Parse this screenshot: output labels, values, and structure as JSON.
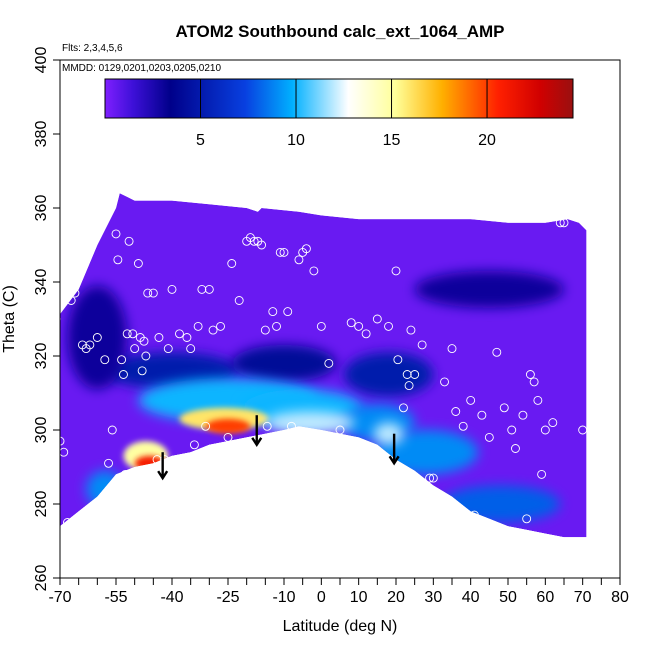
{
  "chart_data": {
    "type": "heatmap",
    "title": "ATOM2 Southbound calc_ext_1064_AMP",
    "annotations": [
      "Flts: 2,3,4,5,6",
      "MMDD: 0129,0201,0203,0205,0210"
    ],
    "xlabel": "Latitude (deg N)",
    "ylabel": "Theta (C)",
    "xlim": [
      -70,
      80
    ],
    "ylim": [
      260,
      400
    ],
    "x_tick_labels": [
      "-70",
      "-55",
      "-40",
      "-25",
      "-10",
      "0",
      "10",
      "20",
      "30",
      "40",
      "50",
      "60",
      "70",
      "80"
    ],
    "x_tick_values": [
      -70,
      -55,
      -40,
      -25,
      -10,
      0,
      10,
      20,
      30,
      40,
      50,
      60,
      70,
      80
    ],
    "x_minor_ticks": [
      -65,
      -60,
      -50,
      -45,
      -35,
      -30,
      -20,
      -15,
      -5,
      5,
      15,
      25,
      35,
      45,
      55,
      65,
      75
    ],
    "y_tick_labels": [
      "260",
      "280",
      "300",
      "320",
      "340",
      "360",
      "380",
      "400"
    ],
    "y_tick_values": [
      260,
      280,
      300,
      320,
      340,
      360,
      380,
      400
    ],
    "colorbar": {
      "range": [
        0,
        24.5
      ],
      "tick_values": [
        5,
        10,
        15,
        20
      ],
      "tick_labels": [
        "5",
        "10",
        "15",
        "20"
      ],
      "colors": [
        "#7f1fff",
        "#3d10d8",
        "#00008a",
        "#0840e0",
        "#00b0ff",
        "#ffffff",
        "#ffff9a",
        "#ffb000",
        "#ff2000",
        "#d00000",
        "#9a1010"
      ],
      "color_positions": [
        0,
        0.06,
        0.14,
        0.3,
        0.4,
        0.52,
        0.62,
        0.72,
        0.84,
        0.93,
        1
      ]
    },
    "domain_top": [
      [
        -71,
        330
      ],
      [
        -65,
        338
      ],
      [
        -60,
        350
      ],
      [
        -55,
        360
      ],
      [
        -54,
        364
      ],
      [
        -50,
        362
      ],
      [
        -40,
        362
      ],
      [
        -30,
        361
      ],
      [
        -20,
        360
      ],
      [
        -17,
        359
      ],
      [
        -16,
        360
      ],
      [
        -6,
        359
      ],
      [
        0,
        358
      ],
      [
        10,
        357
      ],
      [
        20,
        357
      ],
      [
        30,
        357
      ],
      [
        40,
        357
      ],
      [
        50,
        356
      ],
      [
        60,
        356
      ],
      [
        66,
        357
      ],
      [
        69,
        356
      ],
      [
        71,
        354
      ]
    ],
    "ground_profile": [
      [
        -70,
        274
      ],
      [
        -65,
        278
      ],
      [
        -60,
        282
      ],
      [
        -55,
        288
      ],
      [
        -50,
        290
      ],
      [
        -45,
        291
      ],
      [
        -40,
        293
      ],
      [
        -35,
        294
      ],
      [
        -30,
        296
      ],
      [
        -25,
        297
      ],
      [
        -20,
        298
      ],
      [
        -15,
        299
      ],
      [
        -10,
        300
      ],
      [
        -6,
        301
      ],
      [
        0,
        300
      ],
      [
        5,
        299
      ],
      [
        10,
        298
      ],
      [
        15,
        296
      ],
      [
        20,
        292
      ],
      [
        25,
        289
      ],
      [
        30,
        285
      ],
      [
        35,
        282
      ],
      [
        40,
        278
      ],
      [
        45,
        276
      ],
      [
        50,
        274
      ],
      [
        55,
        273
      ],
      [
        60,
        272
      ],
      [
        65,
        271
      ],
      [
        71,
        271
      ]
    ],
    "blobs": [
      {
        "lat": -40,
        "theta": 316,
        "rx": 18,
        "ry": 5,
        "value": 5
      },
      {
        "lat": -10,
        "theta": 318,
        "rx": 14,
        "ry": 5,
        "value": 4
      },
      {
        "lat": 18,
        "theta": 315,
        "rx": 12,
        "ry": 6,
        "value": 5
      },
      {
        "lat": -25,
        "theta": 308,
        "rx": 24,
        "ry": 6,
        "value": 10
      },
      {
        "lat": -5,
        "theta": 306,
        "rx": 16,
        "ry": 5,
        "value": 10
      },
      {
        "lat": 15,
        "theta": 302,
        "rx": 10,
        "ry": 5,
        "value": 9
      },
      {
        "lat": 28,
        "theta": 294,
        "rx": 14,
        "ry": 6,
        "value": 9
      },
      {
        "lat": 48,
        "theta": 280,
        "rx": 16,
        "ry": 5,
        "value": 8
      },
      {
        "lat": -26,
        "theta": 303,
        "rx": 12,
        "ry": 3,
        "value": 16
      },
      {
        "lat": -25,
        "theta": 301,
        "rx": 6,
        "ry": 2,
        "value": 20
      },
      {
        "lat": -3,
        "theta": 302,
        "rx": 12,
        "ry": 3,
        "value": 12
      },
      {
        "lat": 18,
        "theta": 299,
        "rx": 4,
        "ry": 3,
        "value": 12
      },
      {
        "lat": -47,
        "theta": 293,
        "rx": 6,
        "ry": 4,
        "value": 15
      },
      {
        "lat": -46,
        "theta": 291,
        "rx": 4,
        "ry": 2,
        "value": 21
      },
      {
        "lat": -58,
        "theta": 284,
        "rx": 5,
        "ry": 5,
        "value": 9
      },
      {
        "lat": 45,
        "theta": 338,
        "rx": 20,
        "ry": 5,
        "value": 3
      },
      {
        "lat": -60,
        "theta": 325,
        "rx": 8,
        "ry": 14,
        "value": 3
      }
    ],
    "arrows": [
      {
        "lat": -42.5,
        "theta_top": 294,
        "theta_bottom": 287
      },
      {
        "lat": -17.3,
        "theta_top": 304,
        "theta_bottom": 296
      },
      {
        "lat": 19.5,
        "theta_top": 299,
        "theta_bottom": 291
      }
    ],
    "sample_points": [
      [
        -71,
        330
      ],
      [
        -70,
        297
      ],
      [
        -69,
        294
      ],
      [
        -68,
        275
      ],
      [
        -67,
        335
      ],
      [
        -66,
        337
      ],
      [
        -64,
        323
      ],
      [
        -63,
        322
      ],
      [
        -62,
        323
      ],
      [
        -60,
        325
      ],
      [
        -58,
        319
      ],
      [
        -57,
        291
      ],
      [
        -56,
        300
      ],
      [
        -55.5,
        281
      ],
      [
        -55,
        353
      ],
      [
        -54.5,
        346
      ],
      [
        -53.5,
        319
      ],
      [
        -53,
        315
      ],
      [
        -52.5,
        288
      ],
      [
        -52,
        326
      ],
      [
        -51.5,
        351
      ],
      [
        -50.5,
        326
      ],
      [
        -50,
        322
      ],
      [
        -49,
        345
      ],
      [
        -48.5,
        325
      ],
      [
        -48,
        316
      ],
      [
        -47.5,
        324
      ],
      [
        -47,
        320
      ],
      [
        -46.5,
        337
      ],
      [
        -45,
        337
      ],
      [
        -44,
        292
      ],
      [
        -43.5,
        325
      ],
      [
        -42,
        292
      ],
      [
        -41,
        322
      ],
      [
        -40,
        338
      ],
      [
        -38,
        326
      ],
      [
        -36,
        325
      ],
      [
        -35,
        322
      ],
      [
        -34,
        296
      ],
      [
        -33,
        328
      ],
      [
        -32,
        338
      ],
      [
        -31,
        301
      ],
      [
        -30,
        338
      ],
      [
        -29,
        327
      ],
      [
        -27,
        328
      ],
      [
        -25,
        298
      ],
      [
        -24,
        345
      ],
      [
        -22,
        335
      ],
      [
        -20,
        351
      ],
      [
        -19,
        352
      ],
      [
        -18,
        351
      ],
      [
        -17,
        351
      ],
      [
        -16,
        350
      ],
      [
        -15,
        327
      ],
      [
        -14.5,
        301
      ],
      [
        -13,
        332
      ],
      [
        -12,
        328
      ],
      [
        -11,
        348
      ],
      [
        -10,
        348
      ],
      [
        -9,
        332
      ],
      [
        -8,
        301
      ],
      [
        -6,
        346
      ],
      [
        -5,
        348
      ],
      [
        -4,
        349
      ],
      [
        -2,
        343
      ],
      [
        0,
        328
      ],
      [
        2,
        318
      ],
      [
        5,
        300
      ],
      [
        8,
        329
      ],
      [
        10,
        328
      ],
      [
        12,
        326
      ],
      [
        15,
        330
      ],
      [
        18,
        328
      ],
      [
        20,
        343
      ],
      [
        20.5,
        319
      ],
      [
        22,
        306
      ],
      [
        23,
        315
      ],
      [
        23.5,
        312
      ],
      [
        24,
        327
      ],
      [
        25,
        315
      ],
      [
        27,
        323
      ],
      [
        29,
        287
      ],
      [
        30,
        287
      ],
      [
        31,
        283
      ],
      [
        33,
        313
      ],
      [
        35,
        322
      ],
      [
        36,
        305
      ],
      [
        38,
        301
      ],
      [
        40,
        308
      ],
      [
        41,
        277
      ],
      [
        43,
        304
      ],
      [
        45,
        298
      ],
      [
        47,
        321
      ],
      [
        49,
        306
      ],
      [
        51,
        300
      ],
      [
        52,
        295
      ],
      [
        54,
        304
      ],
      [
        55,
        276
      ],
      [
        56,
        315
      ],
      [
        57,
        313
      ],
      [
        58,
        308
      ],
      [
        59,
        288
      ],
      [
        60,
        300
      ],
      [
        62,
        302
      ],
      [
        64,
        356
      ],
      [
        65,
        356
      ],
      [
        70,
        300
      ]
    ]
  }
}
